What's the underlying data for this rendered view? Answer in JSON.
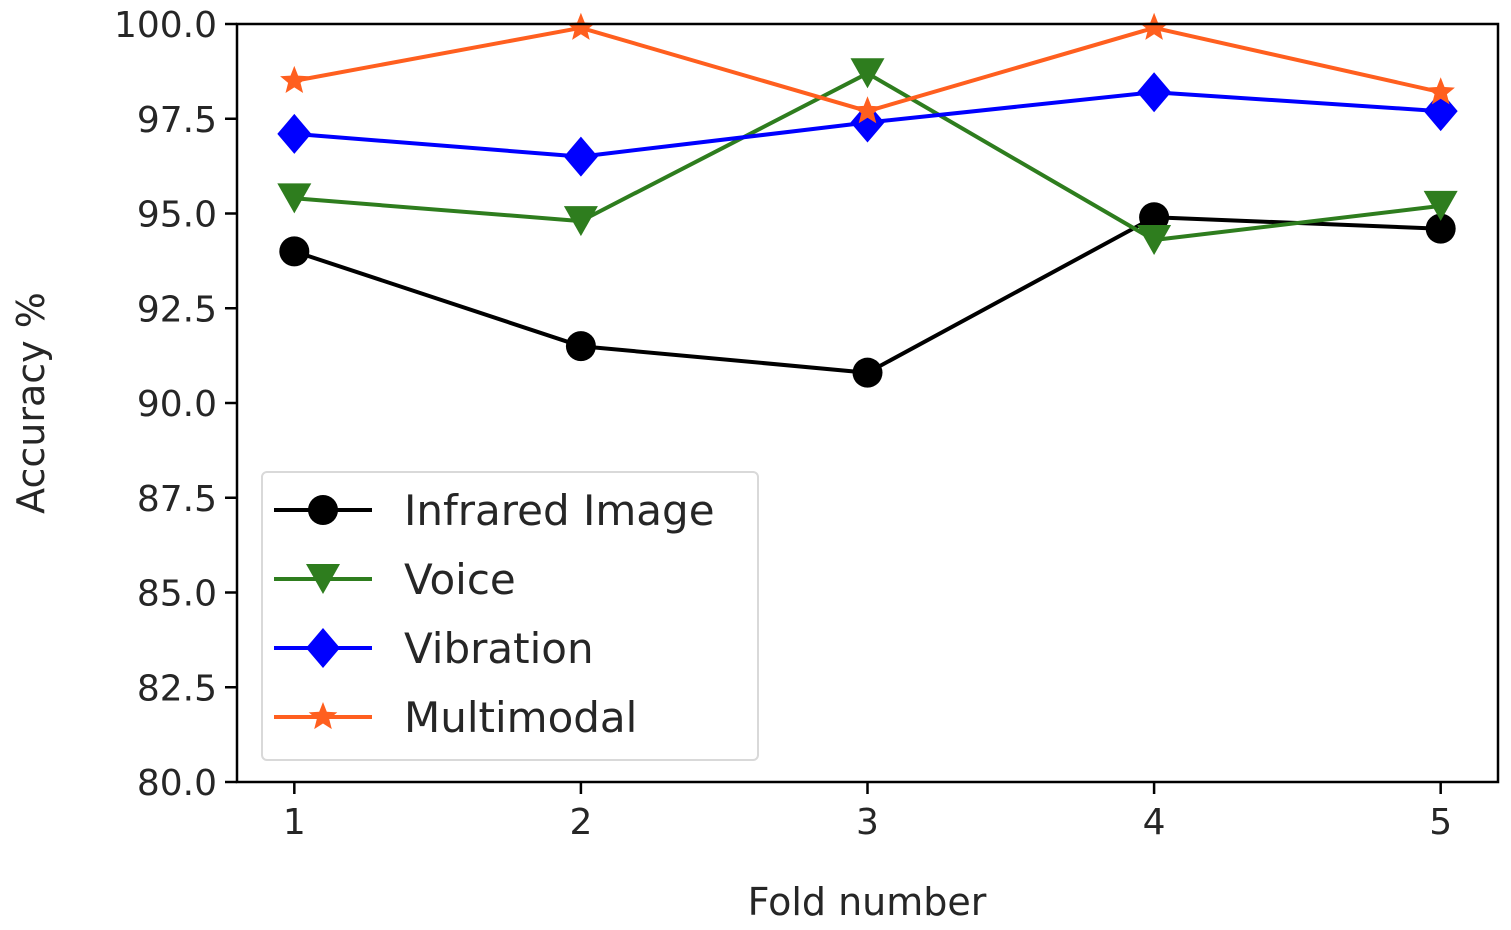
{
  "chart_data": {
    "type": "line",
    "title": "",
    "xlabel": "Fold number",
    "ylabel": "Accuracy %",
    "x": [
      1,
      2,
      3,
      4,
      5
    ],
    "x_tick_labels": [
      "1",
      "2",
      "3",
      "4",
      "5"
    ],
    "xlim": [
      0.8,
      5.2
    ],
    "ylim": [
      80.0,
      100.0
    ],
    "y_ticks": [
      80.0,
      82.5,
      85.0,
      87.5,
      90.0,
      92.5,
      95.0,
      97.5,
      100.0
    ],
    "y_tick_labels": [
      "80.0",
      "82.5",
      "85.0",
      "87.5",
      "90.0",
      "92.5",
      "95.0",
      "97.5",
      "100.0"
    ],
    "grid": false,
    "legend_position": "center-left",
    "series": [
      {
        "name": "Infrared Image",
        "color": "#000000",
        "marker": "circle",
        "values": [
          94.0,
          91.5,
          90.8,
          94.9,
          94.6
        ]
      },
      {
        "name": "Voice",
        "color": "#2e7d1e",
        "marker": "triangle-down",
        "values": [
          95.4,
          94.8,
          98.7,
          94.3,
          95.2
        ]
      },
      {
        "name": "Vibration",
        "color": "#0000ff",
        "marker": "diamond",
        "values": [
          97.1,
          96.5,
          97.4,
          98.2,
          97.7
        ]
      },
      {
        "name": "Multimodal",
        "color": "#ff5f1f",
        "marker": "star",
        "values": [
          98.5,
          99.9,
          97.7,
          99.9,
          98.2
        ]
      }
    ]
  }
}
